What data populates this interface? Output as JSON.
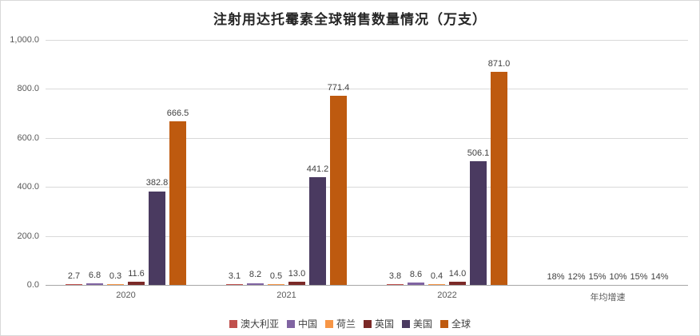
{
  "chart_data": {
    "type": "bar",
    "title": "注射用达托霉素全球销售数量情况（万支）",
    "categories": [
      "2020",
      "2021",
      "2022",
      "年均增速"
    ],
    "series": [
      {
        "name": "澳大利亚",
        "color": "#c0504d",
        "values": [
          2.7,
          3.1,
          3.8
        ],
        "labels": [
          "2.7",
          "3.1",
          "3.8"
        ],
        "growth": "18%"
      },
      {
        "name": "中国",
        "color": "#8064a2",
        "values": [
          6.8,
          8.2,
          8.6
        ],
        "labels": [
          "6.8",
          "8.2",
          "8.6"
        ],
        "growth": "12%"
      },
      {
        "name": "荷兰",
        "color": "#f79646",
        "values": [
          0.3,
          0.5,
          0.4
        ],
        "labels": [
          "0.3",
          "0.5",
          "0.4"
        ],
        "growth": "15%"
      },
      {
        "name": "英国",
        "color": "#7b2927",
        "values": [
          11.6,
          13.0,
          14.0
        ],
        "labels": [
          "11.6",
          "13.0",
          "14.0"
        ],
        "growth": "10%"
      },
      {
        "name": "美国",
        "color": "#4a3a60",
        "values": [
          382.8,
          441.2,
          506.1
        ],
        "labels": [
          "382.8",
          "441.2",
          "506.1"
        ],
        "growth": "15%"
      },
      {
        "name": "全球",
        "color": "#be5a0f",
        "values": [
          666.5,
          771.4,
          871.0
        ],
        "labels": [
          "666.5",
          "771.4",
          "871.0"
        ],
        "growth": "14%"
      }
    ],
    "ylim": [
      0,
      1000
    ],
    "yticks": [
      "0.0",
      "200.0",
      "400.0",
      "600.0",
      "800.0",
      "1,000.0"
    ],
    "grid": true,
    "legend_position": "bottom",
    "colors": {
      "gridline": "#d9d9d9",
      "axis_line": "#a6a6a6",
      "tick_text": "#595959",
      "label_text": "#404040",
      "title_text": "#262626",
      "border": "#d9d9d9"
    }
  }
}
